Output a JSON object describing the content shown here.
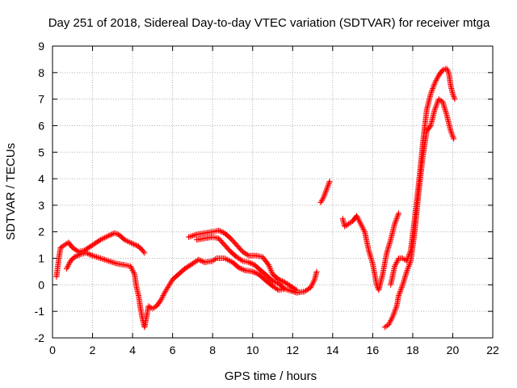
{
  "chart_data": {
    "type": "scatter",
    "title": "Day 251 of 2018, Sidereal Day-to-day VTEC variation (SDTVAR) for receiver mtga",
    "xlabel": "GPS time / hours",
    "ylabel": "SDTVAR / TECUs",
    "xlim": [
      0,
      22
    ],
    "ylim": [
      -2,
      9
    ],
    "xticks": [
      0,
      2,
      4,
      6,
      8,
      10,
      12,
      14,
      16,
      18,
      20,
      22
    ],
    "yticks": [
      -2,
      -1,
      0,
      1,
      2,
      3,
      4,
      5,
      6,
      7,
      8,
      9
    ],
    "grid": true,
    "marker": "plus",
    "color": "#ff0000",
    "series": [
      {
        "name": "s1",
        "points": [
          [
            0.2,
            0.3
          ],
          [
            0.3,
            0.9
          ],
          [
            0.4,
            1.4
          ],
          [
            0.6,
            1.5
          ],
          [
            0.8,
            1.6
          ],
          [
            1.0,
            1.4
          ],
          [
            1.3,
            1.25
          ],
          [
            1.6,
            1.3
          ],
          [
            2.0,
            1.5
          ],
          [
            2.4,
            1.7
          ],
          [
            2.8,
            1.85
          ],
          [
            3.1,
            1.95
          ],
          [
            3.3,
            1.9
          ],
          [
            3.6,
            1.7
          ],
          [
            4.0,
            1.55
          ],
          [
            4.3,
            1.45
          ],
          [
            4.5,
            1.3
          ],
          [
            4.6,
            1.2
          ]
        ]
      },
      {
        "name": "s2",
        "points": [
          [
            0.7,
            0.6
          ],
          [
            0.9,
            0.9
          ],
          [
            1.1,
            1.05
          ],
          [
            1.4,
            1.15
          ],
          [
            1.7,
            1.2
          ],
          [
            2.0,
            1.1
          ],
          [
            2.4,
            1.0
          ],
          [
            2.8,
            0.9
          ],
          [
            3.2,
            0.8
          ],
          [
            3.6,
            0.75
          ],
          [
            3.9,
            0.7
          ],
          [
            4.1,
            0.4
          ],
          [
            4.2,
            -0.1
          ],
          [
            4.3,
            -0.4
          ],
          [
            4.4,
            -0.9
          ],
          [
            4.5,
            -1.3
          ],
          [
            4.6,
            -1.6
          ],
          [
            4.7,
            -1.2
          ],
          [
            4.8,
            -0.8
          ],
          [
            5.0,
            -0.9
          ],
          [
            5.2,
            -0.8
          ],
          [
            5.4,
            -0.6
          ],
          [
            5.6,
            -0.3
          ],
          [
            5.8,
            -0.05
          ],
          [
            6.0,
            0.2
          ],
          [
            6.3,
            0.4
          ],
          [
            6.6,
            0.6
          ],
          [
            7.0,
            0.8
          ],
          [
            7.3,
            0.95
          ],
          [
            7.6,
            0.85
          ],
          [
            8.0,
            0.9
          ],
          [
            8.2,
            1.0
          ],
          [
            8.6,
            1.0
          ],
          [
            9.0,
            0.85
          ],
          [
            9.3,
            0.65
          ],
          [
            9.6,
            0.55
          ],
          [
            10.0,
            0.5
          ],
          [
            10.3,
            0.4
          ],
          [
            10.6,
            0.2
          ],
          [
            11.0,
            -0.05
          ],
          [
            11.3,
            -0.2
          ],
          [
            11.6,
            -0.15
          ],
          [
            11.8,
            -0.2
          ],
          [
            12.2,
            -0.3
          ],
          [
            12.6,
            -0.25
          ],
          [
            12.9,
            -0.1
          ],
          [
            13.1,
            0.2
          ],
          [
            13.2,
            0.5
          ]
        ]
      },
      {
        "name": "s3",
        "points": [
          [
            6.8,
            1.8
          ],
          [
            7.2,
            1.9
          ],
          [
            7.6,
            1.95
          ],
          [
            8.0,
            2.0
          ],
          [
            8.3,
            2.05
          ],
          [
            8.6,
            1.95
          ],
          [
            8.9,
            1.75
          ],
          [
            9.2,
            1.5
          ],
          [
            9.5,
            1.25
          ],
          [
            9.8,
            1.1
          ],
          [
            10.2,
            1.1
          ],
          [
            10.5,
            1.05
          ],
          [
            10.8,
            0.75
          ],
          [
            11.0,
            0.4
          ],
          [
            11.3,
            0.2
          ],
          [
            11.6,
            0.1
          ],
          [
            11.9,
            -0.05
          ],
          [
            12.2,
            -0.2
          ]
        ]
      },
      {
        "name": "s4",
        "points": [
          [
            7.2,
            1.7
          ],
          [
            7.6,
            1.75
          ],
          [
            8.0,
            1.8
          ],
          [
            8.3,
            1.75
          ],
          [
            8.6,
            1.5
          ],
          [
            8.9,
            1.25
          ],
          [
            9.2,
            1.05
          ],
          [
            9.5,
            0.9
          ],
          [
            9.8,
            0.85
          ],
          [
            10.1,
            0.75
          ],
          [
            10.4,
            0.55
          ],
          [
            10.7,
            0.35
          ],
          [
            11.0,
            0.15
          ],
          [
            11.3,
            0.05
          ],
          [
            11.6,
            -0.15
          ]
        ]
      },
      {
        "name": "s5",
        "points": [
          [
            13.4,
            3.1
          ],
          [
            13.55,
            3.3
          ],
          [
            13.7,
            3.6
          ],
          [
            13.85,
            3.9
          ]
        ]
      },
      {
        "name": "s6",
        "points": [
          [
            14.5,
            2.5
          ],
          [
            14.6,
            2.2
          ],
          [
            14.8,
            2.3
          ],
          [
            15.0,
            2.4
          ],
          [
            15.2,
            2.6
          ],
          [
            15.4,
            2.3
          ],
          [
            15.6,
            2.0
          ],
          [
            15.8,
            1.3
          ],
          [
            16.0,
            0.8
          ],
          [
            16.1,
            0.4
          ],
          [
            16.2,
            0.0
          ],
          [
            16.3,
            -0.2
          ],
          [
            16.5,
            0.4
          ],
          [
            16.7,
            1.2
          ],
          [
            16.9,
            1.7
          ],
          [
            17.1,
            2.3
          ],
          [
            17.3,
            2.7
          ]
        ]
      },
      {
        "name": "s7",
        "points": [
          [
            16.6,
            -1.6
          ],
          [
            16.8,
            -1.5
          ],
          [
            17.0,
            -1.2
          ],
          [
            17.2,
            -0.8
          ],
          [
            17.3,
            -0.4
          ],
          [
            17.5,
            0.0
          ],
          [
            17.7,
            0.5
          ],
          [
            17.9,
            0.9
          ],
          [
            18.1,
            2.0
          ],
          [
            18.3,
            3.5
          ],
          [
            18.5,
            4.8
          ],
          [
            18.7,
            5.8
          ],
          [
            18.9,
            6.0
          ],
          [
            19.1,
            6.6
          ],
          [
            19.3,
            7.0
          ],
          [
            19.5,
            6.9
          ],
          [
            19.7,
            6.4
          ],
          [
            19.9,
            5.8
          ],
          [
            20.05,
            5.5
          ]
        ]
      },
      {
        "name": "s8",
        "points": [
          [
            16.9,
            0.0
          ],
          [
            17.1,
            0.7
          ],
          [
            17.3,
            1.0
          ],
          [
            17.5,
            1.0
          ],
          [
            17.7,
            0.9
          ],
          [
            17.9,
            1.3
          ],
          [
            18.1,
            2.5
          ],
          [
            18.3,
            3.8
          ],
          [
            18.5,
            5.3
          ],
          [
            18.7,
            6.6
          ],
          [
            18.9,
            7.2
          ],
          [
            19.1,
            7.6
          ],
          [
            19.3,
            7.9
          ],
          [
            19.5,
            8.1
          ],
          [
            19.7,
            8.15
          ],
          [
            19.8,
            8.0
          ],
          [
            19.9,
            7.5
          ],
          [
            20.0,
            7.2
          ],
          [
            20.1,
            7.0
          ]
        ]
      }
    ]
  }
}
